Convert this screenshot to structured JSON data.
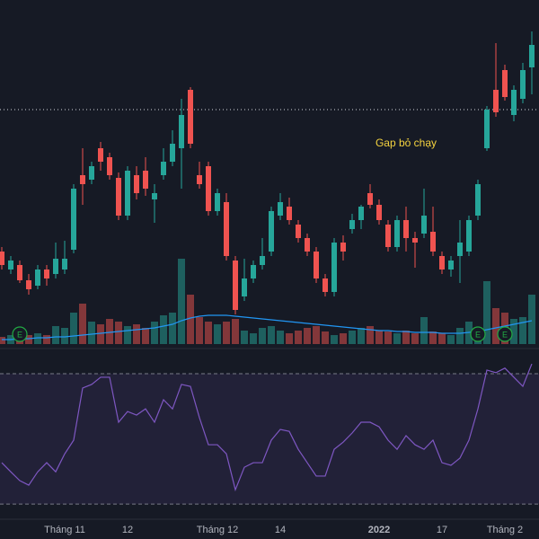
{
  "chart_data": {
    "type": "candlestick",
    "annotation": "Gap bỏ chạy",
    "categories": [
      null,
      null,
      null,
      null,
      null,
      null,
      null,
      "Tháng 11",
      null,
      null,
      null,
      null,
      null,
      null,
      "12",
      null,
      null,
      null,
      null,
      null,
      null,
      null,
      null,
      null,
      "Tháng 12",
      null,
      null,
      null,
      null,
      null,
      null,
      "14",
      null,
      null,
      null,
      null,
      null,
      null,
      null,
      null,
      null,
      null,
      "2022",
      null,
      null,
      null,
      null,
      null,
      null,
      "17",
      null,
      null,
      null,
      null,
      null,
      null,
      "Tháng 2",
      null,
      null,
      null
    ],
    "events": [
      null,
      null,
      "E",
      null,
      null,
      null,
      null,
      null,
      null,
      null,
      null,
      null,
      null,
      null,
      null,
      null,
      null,
      null,
      null,
      null,
      null,
      null,
      null,
      null,
      null,
      null,
      null,
      null,
      null,
      null,
      null,
      null,
      null,
      null,
      null,
      null,
      null,
      null,
      null,
      null,
      null,
      null,
      null,
      null,
      null,
      null,
      null,
      null,
      null,
      null,
      null,
      null,
      null,
      "E",
      null,
      null,
      "E",
      null,
      null,
      null
    ],
    "open": [
      120,
      100,
      105,
      88,
      82,
      100,
      95,
      100,
      122,
      205,
      200,
      235,
      225,
      202,
      160,
      205,
      210,
      178,
      205,
      220,
      235,
      300,
      205,
      215,
      165,
      175,
      110,
      70,
      90,
      105,
      120,
      160,
      170,
      150,
      135,
      120,
      90,
      75,
      130,
      145,
      155,
      185,
      172,
      150,
      125,
      155,
      135,
      140,
      142,
      115,
      100,
      115,
      120,
      160,
      235,
      300,
      322,
      272,
      290,
      325
    ],
    "high": [
      125,
      115,
      110,
      95,
      105,
      105,
      130,
      132,
      195,
      235,
      220,
      242,
      230,
      208,
      215,
      215,
      225,
      195,
      235,
      255,
      290,
      303,
      220,
      220,
      190,
      185,
      115,
      112,
      110,
      135,
      170,
      185,
      180,
      155,
      140,
      125,
      95,
      135,
      138,
      162,
      172,
      195,
      178,
      155,
      160,
      170,
      142,
      190,
      170,
      120,
      115,
      155,
      160,
      200,
      282,
      352,
      328,
      305,
      330,
      365
    ],
    "low": [
      100,
      95,
      85,
      72,
      78,
      82,
      90,
      95,
      118,
      172,
      195,
      210,
      200,
      155,
      155,
      178,
      182,
      152,
      200,
      215,
      190,
      235,
      190,
      160,
      160,
      110,
      50,
      65,
      85,
      100,
      115,
      155,
      150,
      130,
      115,
      85,
      70,
      70,
      110,
      140,
      145,
      168,
      150,
      120,
      120,
      120,
      102,
      135,
      115,
      95,
      92,
      85,
      115,
      155,
      232,
      270,
      288,
      265,
      285,
      295
    ],
    "close": [
      105,
      110,
      88,
      78,
      100,
      90,
      112,
      112,
      190,
      195,
      215,
      220,
      205,
      160,
      210,
      185,
      190,
      185,
      220,
      240,
      272,
      240,
      195,
      165,
      185,
      115,
      55,
      90,
      105,
      115,
      165,
      175,
      155,
      135,
      120,
      90,
      75,
      130,
      120,
      155,
      170,
      172,
      155,
      125,
      155,
      135,
      130,
      160,
      120,
      100,
      110,
      130,
      155,
      195,
      278,
      275,
      292,
      300,
      322,
      350
    ],
    "ylim": [
      0,
      400
    ],
    "price_line": 278,
    "volume": [
      8,
      10,
      8,
      10,
      12,
      10,
      20,
      18,
      35,
      45,
      25,
      22,
      28,
      25,
      20,
      22,
      18,
      25,
      32,
      35,
      95,
      55,
      30,
      25,
      22,
      25,
      28,
      15,
      12,
      18,
      20,
      15,
      12,
      15,
      18,
      20,
      14,
      10,
      12,
      15,
      18,
      20,
      15,
      14,
      12,
      15,
      12,
      30,
      14,
      12,
      10,
      18,
      25,
      18,
      70,
      40,
      35,
      28,
      30,
      55
    ],
    "volume_ma": [
      5,
      5,
      6,
      6,
      7,
      7,
      8,
      8,
      9,
      10,
      11,
      12,
      13,
      14,
      15,
      16,
      17,
      18,
      20,
      22,
      26,
      29,
      31,
      32,
      32,
      32,
      31,
      30,
      29,
      28,
      27,
      26,
      25,
      24,
      23,
      22,
      21,
      20,
      19,
      18,
      17,
      16,
      15,
      15,
      14,
      14,
      13,
      13,
      13,
      12,
      12,
      12,
      13,
      14,
      16,
      18,
      20,
      22,
      24,
      26
    ],
    "volume_lim": [
      0,
      100
    ],
    "rsi": [
      42.7,
      39.9,
      37.2,
      35.8,
      39.9,
      42.7,
      39.9,
      45.4,
      49.6,
      65.6,
      66.7,
      68.9,
      68.9,
      55.1,
      58.4,
      57.3,
      59.2,
      55.1,
      62.0,
      59.2,
      66.7,
      66.1,
      56.5,
      48.2,
      48.2,
      45.4,
      34.4,
      41.3,
      42.7,
      42.7,
      49.6,
      52.9,
      52.3,
      46.8,
      42.7,
      38.6,
      38.6,
      46.8,
      49.0,
      51.8,
      55.1,
      55.1,
      53.7,
      49.6,
      46.8,
      51.0,
      48.2,
      46.8,
      49.6,
      42.7,
      41.9,
      44.1,
      49.6,
      59.2,
      71.1,
      70.3,
      71.7,
      68.9,
      66.1,
      73.0
    ],
    "rsi_ylim": [
      22.6,
      77.7
    ],
    "rsi_levels": [
      70,
      30
    ],
    "up_color": "#26a69a",
    "down_color": "#ef5350",
    "rsi_color": "#7e57c2",
    "volume_ma_color": "#2196f3",
    "event_color": "#22ab44"
  }
}
